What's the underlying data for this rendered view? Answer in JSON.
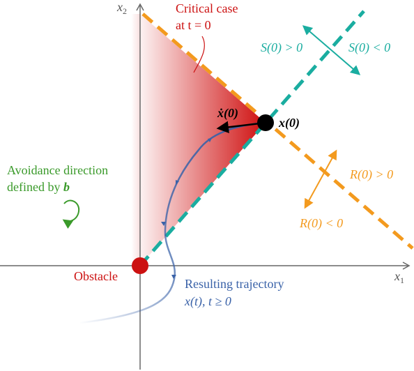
{
  "axes": {
    "x": {
      "base": "x",
      "sub": "1"
    },
    "y": {
      "base": "x",
      "sub": "2"
    }
  },
  "critical_case": {
    "line1": "Critical case",
    "line2": "at t = 0"
  },
  "s_labels": {
    "positive": "S(0) > 0",
    "negative": "S(0) < 0"
  },
  "r_labels": {
    "positive": "R(0) > 0",
    "negative": "R(0) < 0"
  },
  "initial_velocity": "ẋ(0)",
  "initial_state": "x(0)",
  "avoidance": {
    "line1": "Avoidance direction",
    "line2_prefix": "defined by ",
    "line2_symbol": "b"
  },
  "obstacle": "Obstacle",
  "trajectory": {
    "line1": "Resulting trajectory",
    "line2": "x(t), t ≥ 0"
  }
}
